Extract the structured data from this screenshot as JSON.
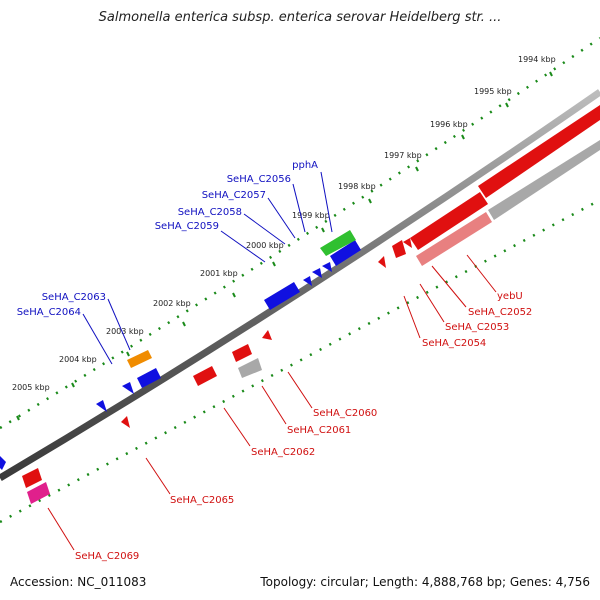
{
  "title": "Salmonella enterica subsp. enterica serovar Heidelberg str. ...",
  "footer": {
    "accession": "Accession: NC_011083",
    "topology": "Topology: circular; Length: 4,888,768 bp; Genes: 4,756"
  },
  "scale_labels": [
    "1994 kbp",
    "1995 kbp",
    "1996 kbp",
    "1997 kbp",
    "1998 kbp",
    "1999 kbp",
    "2000 kbp",
    "2001 kbp",
    "2002 kbp",
    "2003 kbp",
    "2004 kbp",
    "2005 kbp"
  ],
  "genes_top": [
    "pphA",
    "SeHA_C2056",
    "SeHA_C2057",
    "SeHA_C2058",
    "SeHA_C2059",
    "SeHA_C2063",
    "SeHA_C2064"
  ],
  "genes_bottom": [
    "yebU",
    "SeHA_C2052",
    "SeHA_C2053",
    "SeHA_C2054",
    "SeHA_C2060",
    "SeHA_C2061",
    "SeHA_C2062",
    "SeHA_C2065",
    "SeHA_C2069"
  ],
  "colors": {
    "forward_gene": "#1010e0",
    "reverse_gene": "#e01010",
    "rna_gene": "#a8a8a8",
    "highlight_green": "#30c030",
    "highlight_orange": "#f08c00",
    "pseudo_pink": "#e0208c",
    "backbone": "#707070",
    "ticks": "#1a8a1a",
    "label_top": "#1010c0",
    "label_bottom": "#d01010"
  }
}
